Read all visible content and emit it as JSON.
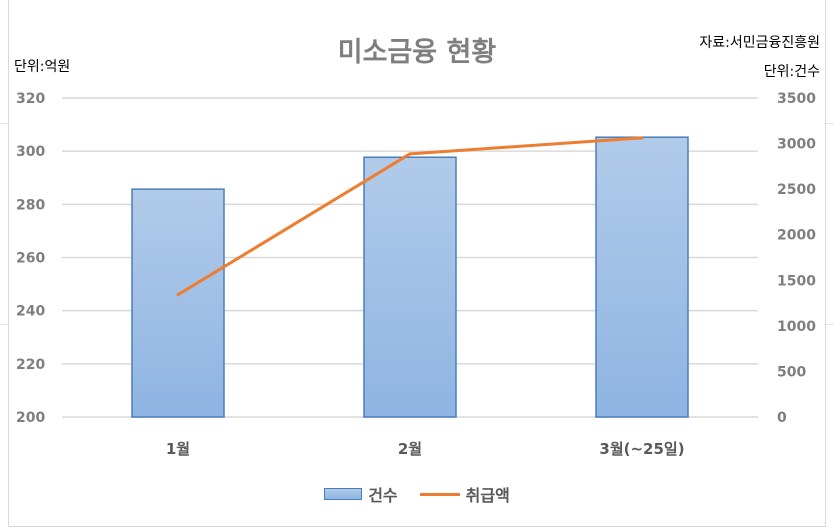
{
  "chart_data": {
    "type": "bar+line",
    "title": "미소금융 현황",
    "source_note": "자료:서민금융진흥원",
    "left_unit": "단위:억원",
    "right_unit": "단위:건수",
    "categories": [
      "1월",
      "2월",
      "3월(~25일)"
    ],
    "left_axis": {
      "ticks": [
        "200",
        "220",
        "240",
        "260",
        "280",
        "300",
        "320"
      ],
      "range": [
        200,
        320
      ]
    },
    "right_axis": {
      "ticks": [
        "0",
        "500",
        "1000",
        "1500",
        "2000",
        "2500",
        "3000",
        "3500"
      ],
      "range": [
        0,
        3500
      ]
    },
    "series": [
      {
        "name": "건수",
        "type": "bar",
        "axis": "right",
        "values": [
          2500,
          2850,
          3070
        ],
        "color": "#9dbde6"
      },
      {
        "name": "취급액",
        "type": "line",
        "axis": "left",
        "values": [
          246,
          299,
          305
        ],
        "color": "#ed7d31"
      }
    ],
    "grid": true,
    "legend": "bottom"
  }
}
